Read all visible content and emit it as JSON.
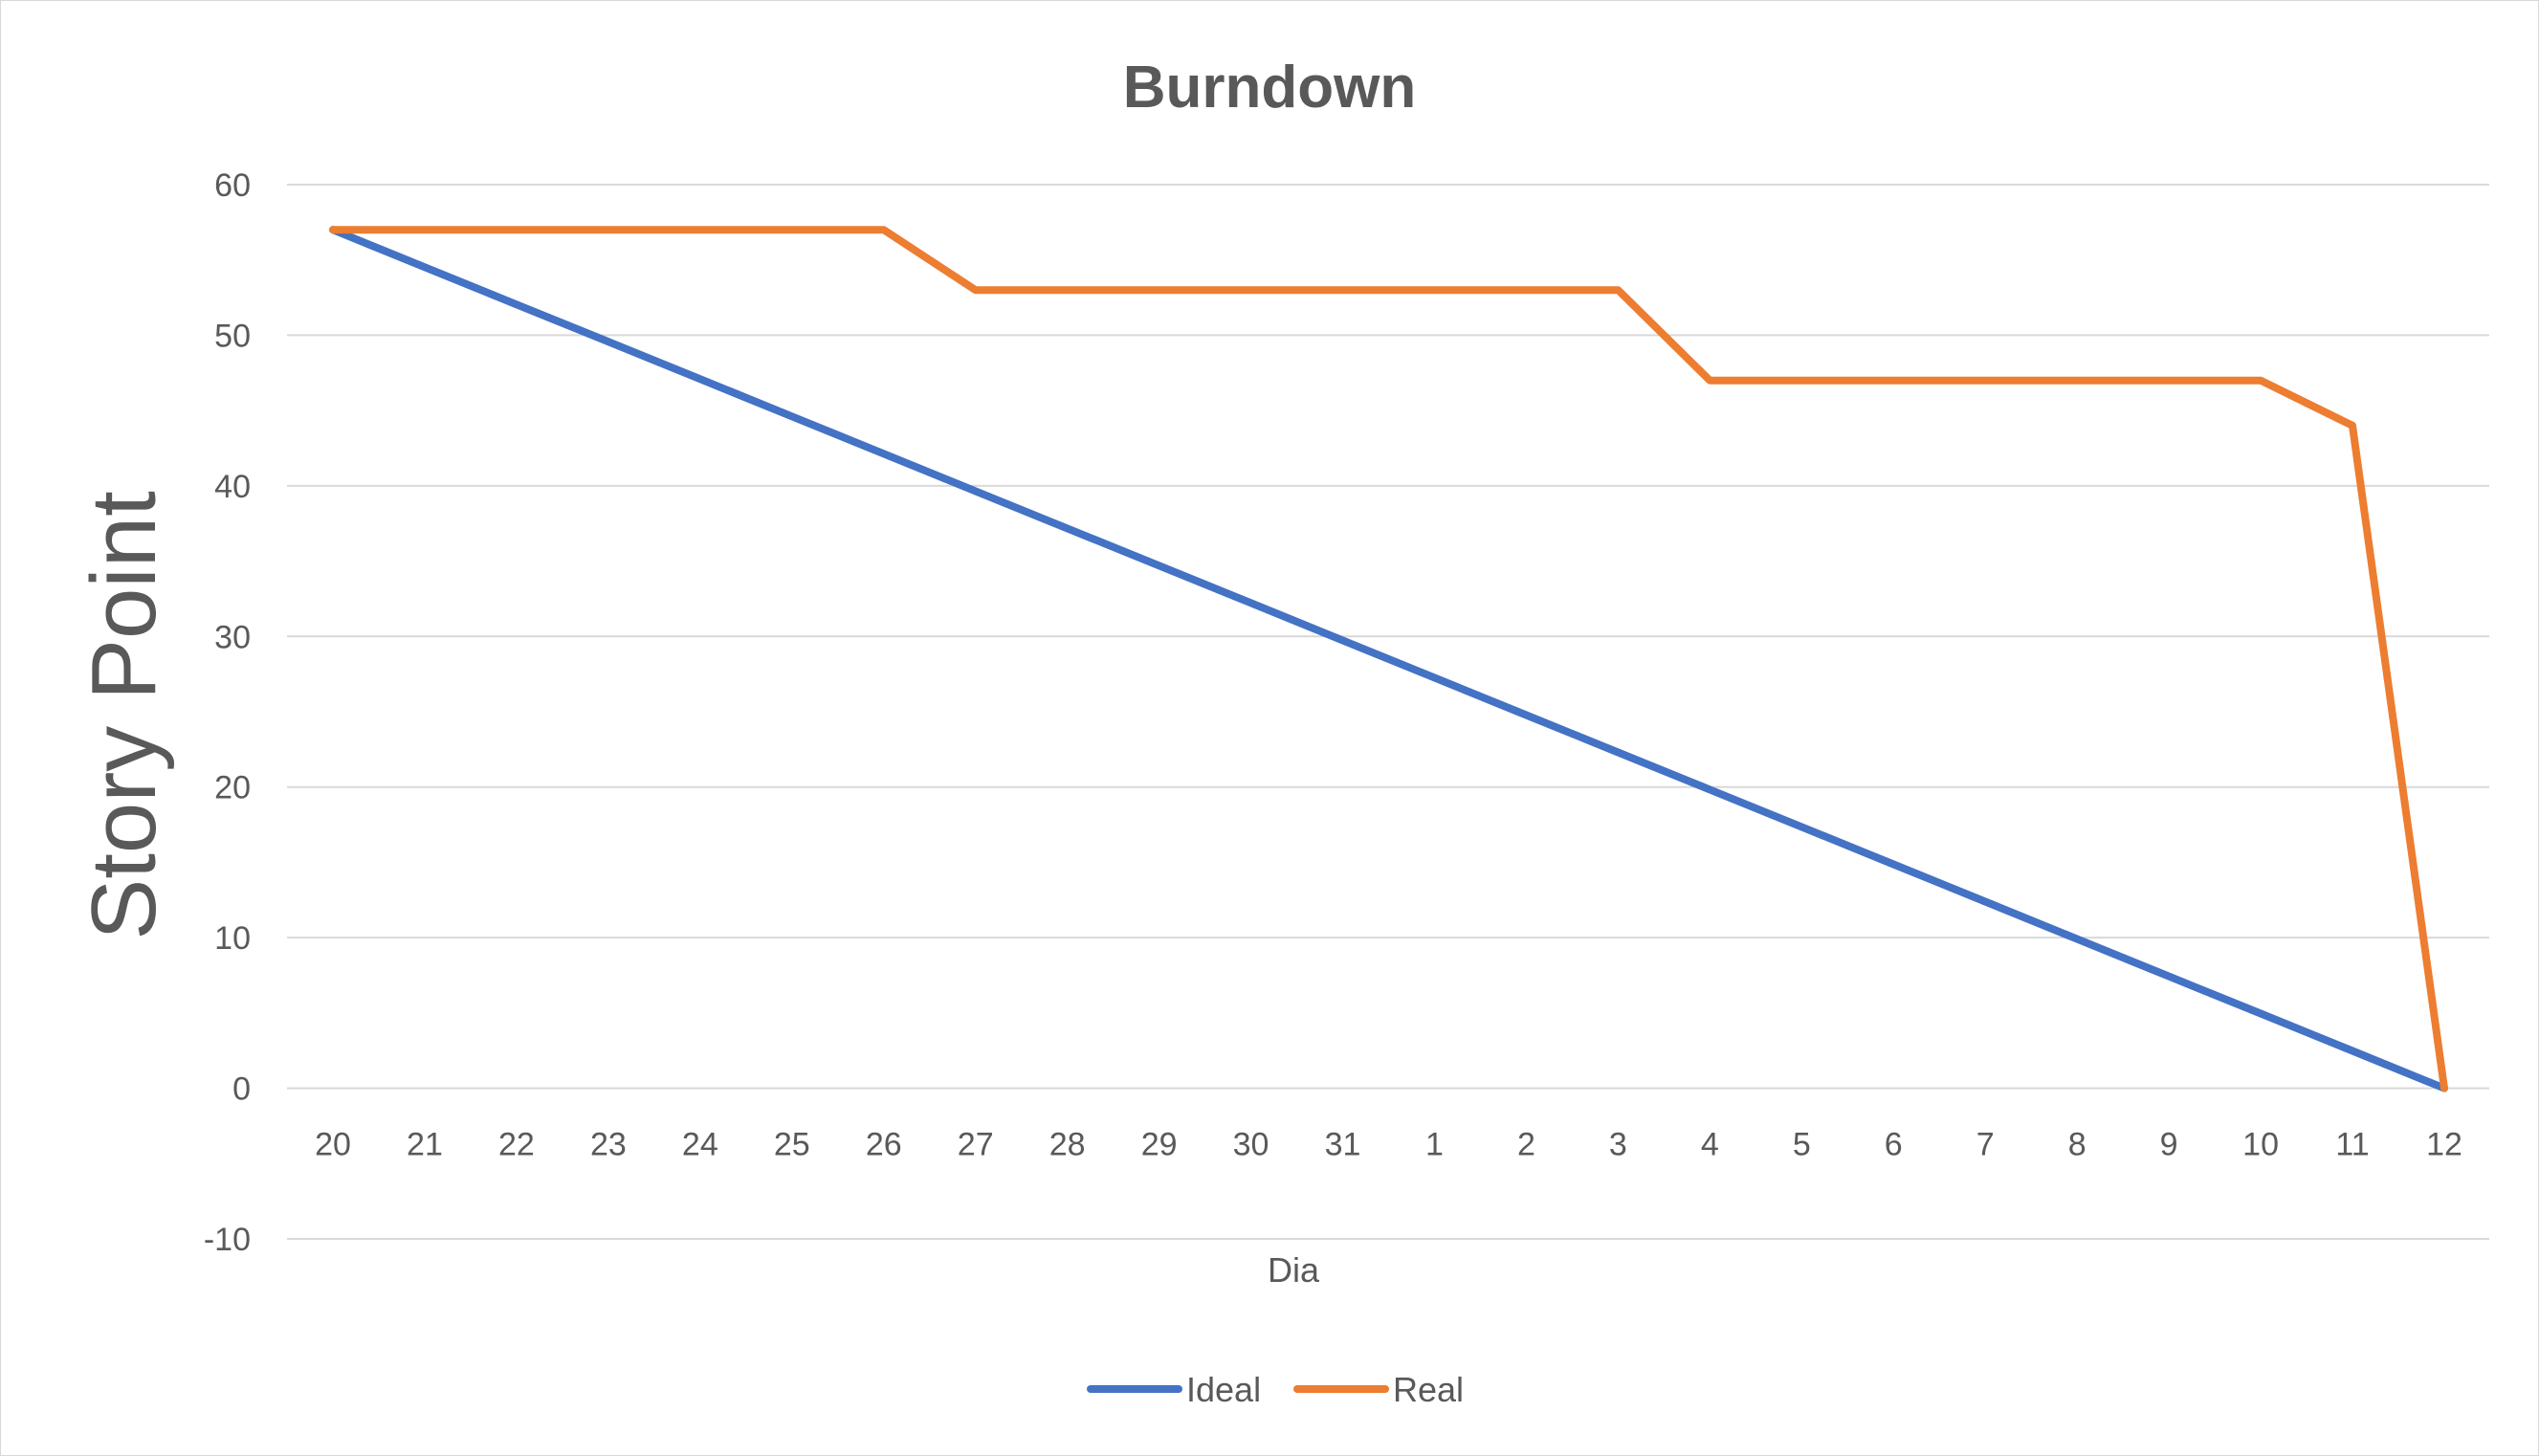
{
  "chart_data": {
    "type": "line",
    "title": "Burndown",
    "xlabel": "Dia",
    "ylabel": "Story Point",
    "categories": [
      "20",
      "21",
      "22",
      "23",
      "24",
      "25",
      "26",
      "27",
      "28",
      "29",
      "30",
      "31",
      "1",
      "2",
      "3",
      "4",
      "5",
      "6",
      "7",
      "8",
      "9",
      "10",
      "11",
      "12"
    ],
    "ylim": [
      -10,
      60
    ],
    "yticks": [
      60,
      50,
      40,
      30,
      20,
      10,
      0,
      -10
    ],
    "grid": true,
    "legend_position": "bottom",
    "series": [
      {
        "name": "Ideal",
        "color": "#4472c4",
        "values": [
          57,
          54.52,
          52.04,
          49.57,
          47.09,
          44.61,
          42.13,
          39.65,
          37.17,
          34.7,
          32.22,
          29.74,
          27.26,
          24.78,
          22.3,
          19.83,
          17.35,
          14.87,
          12.39,
          9.91,
          7.43,
          4.96,
          2.48,
          0
        ]
      },
      {
        "name": "Real",
        "color": "#ed7d31",
        "values": [
          57,
          57,
          57,
          57,
          57,
          57,
          57,
          53,
          53,
          53,
          53,
          53,
          53,
          53,
          53,
          47,
          47,
          47,
          47,
          47,
          47,
          47,
          44,
          0
        ]
      }
    ]
  }
}
